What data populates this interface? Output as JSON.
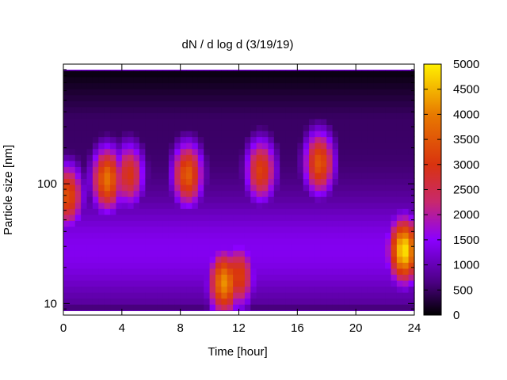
{
  "chart_data": {
    "type": "heatmap",
    "title": "dN / d log d (3/19/19)",
    "xlabel": "Time [hour]",
    "ylabel": "Particle size [nm]",
    "xlim": [
      0,
      24
    ],
    "ylim": [
      8,
      1000
    ],
    "y_scale": "log",
    "grid": false,
    "xticks": [
      0,
      4,
      8,
      12,
      16,
      20,
      24
    ],
    "yticks": [
      10,
      100
    ],
    "colorbar": {
      "range": [
        0,
        5000
      ],
      "ticks": [
        0,
        500,
        1000,
        1500,
        2000,
        2500,
        3000,
        3500,
        4000,
        4500,
        5000
      ],
      "colormap": [
        "#000000",
        "#4b0082",
        "#8b00ff",
        "#c8286e",
        "#d9330f",
        "#e87a00",
        "#fff000"
      ]
    },
    "features": [
      {
        "center_time": 0.3,
        "center_size_nm": 80,
        "peak": 3400
      },
      {
        "center_time": 3.0,
        "center_size_nm": 110,
        "peak": 3900
      },
      {
        "center_time": 4.5,
        "center_size_nm": 120,
        "peak": 3000
      },
      {
        "center_time": 8.5,
        "center_size_nm": 120,
        "peak": 3600
      },
      {
        "center_time": 11.0,
        "center_size_nm": 15,
        "peak": 4200
      },
      {
        "center_time": 12.0,
        "center_size_nm": 17,
        "peak": 3200
      },
      {
        "center_time": 13.5,
        "center_size_nm": 130,
        "peak": 3200
      },
      {
        "center_time": 17.5,
        "center_size_nm": 150,
        "peak": 3500
      },
      {
        "center_time": 23.3,
        "center_size_nm": 28,
        "peak": 4900
      }
    ]
  }
}
